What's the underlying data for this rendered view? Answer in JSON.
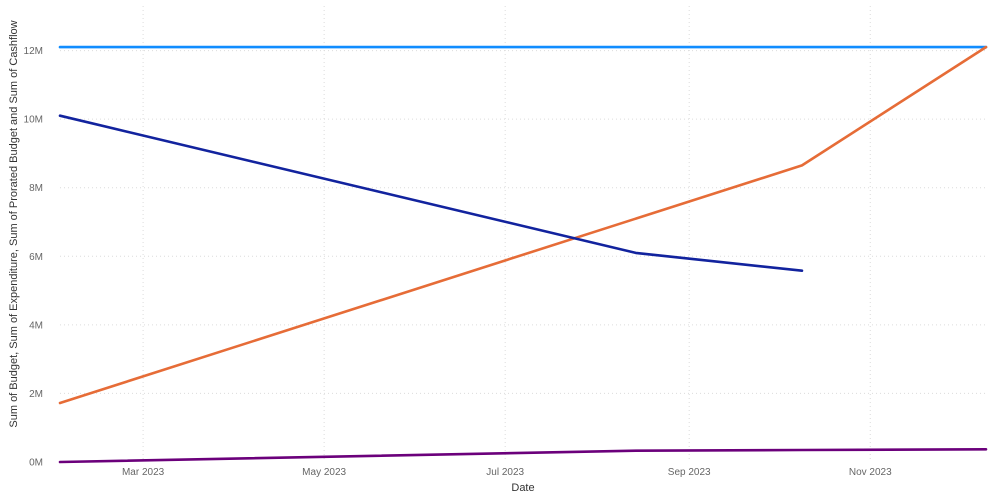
{
  "chart_data": {
    "type": "line",
    "xlabel": "Date",
    "ylabel": "Sum of Budget, Sum of Expenditure, Sum of Prorated Budget and Sum of Cashflow",
    "x_ticks": [
      {
        "date": "2023-03-01",
        "label": "Mar 2023"
      },
      {
        "date": "2023-05-01",
        "label": "May 2023"
      },
      {
        "date": "2023-07-01",
        "label": "Jul 2023"
      },
      {
        "date": "2023-09-01",
        "label": "Sep 2023"
      },
      {
        "date": "2023-11-01",
        "label": "Nov 2023"
      }
    ],
    "y_ticks": [
      {
        "value": 0,
        "label": "0M"
      },
      {
        "value": 2000000,
        "label": "2M"
      },
      {
        "value": 4000000,
        "label": "4M"
      },
      {
        "value": 6000000,
        "label": "6M"
      },
      {
        "value": 8000000,
        "label": "8M"
      },
      {
        "value": 10000000,
        "label": "10M"
      },
      {
        "value": 12000000,
        "label": "12M"
      }
    ],
    "xlim": [
      "2023-02-01",
      "2023-12-10"
    ],
    "ylim": [
      0,
      13300000
    ],
    "grid": true,
    "legend": "none",
    "series": [
      {
        "color": "#118DFF",
        "points": [
          {
            "x": "2023-02-01",
            "y": 12100000
          },
          {
            "x": "2023-12-10",
            "y": 12100000
          }
        ]
      },
      {
        "color": "#E66C37",
        "points": [
          {
            "x": "2023-02-01",
            "y": 1720000
          },
          {
            "x": "2023-10-09",
            "y": 8650000
          },
          {
            "x": "2023-12-10",
            "y": 12100000
          }
        ]
      },
      {
        "color": "#12239E",
        "points": [
          {
            "x": "2023-02-01",
            "y": 10100000
          },
          {
            "x": "2023-08-14",
            "y": 6100000
          },
          {
            "x": "2023-10-09",
            "y": 5580000
          }
        ]
      },
      {
        "color": "#6B007B",
        "points": [
          {
            "x": "2023-02-01",
            "y": 0
          },
          {
            "x": "2023-08-14",
            "y": 330000
          },
          {
            "x": "2023-10-09",
            "y": 350000
          },
          {
            "x": "2023-12-10",
            "y": 370000
          }
        ]
      }
    ]
  }
}
